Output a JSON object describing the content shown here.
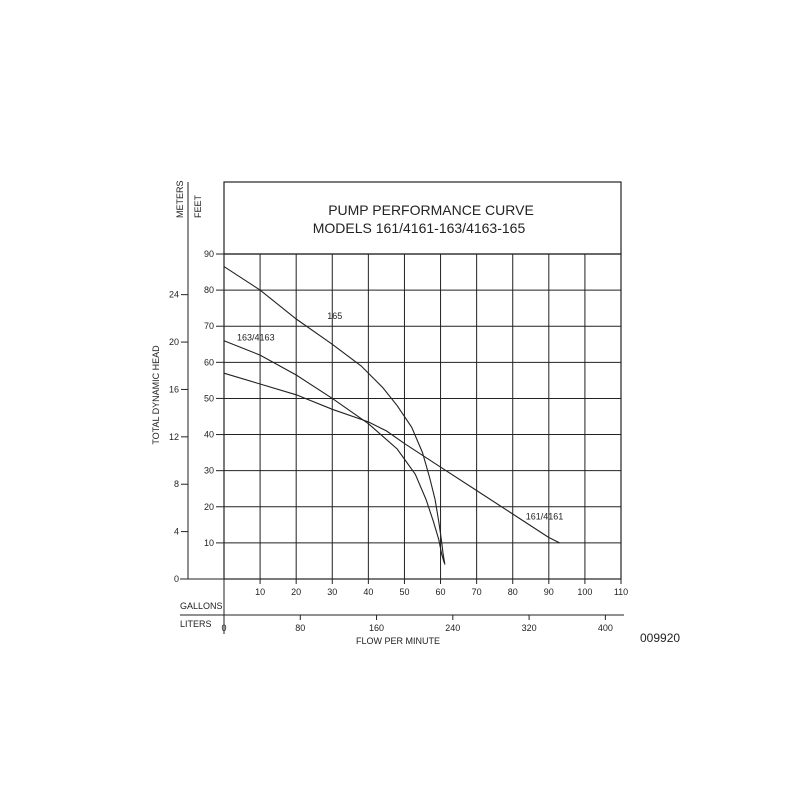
{
  "chart_data": {
    "type": "line",
    "title": "PUMP PERFORMANCE CURVE",
    "subtitle": "MODELS 161/4161-163/4163-165",
    "xlabel": "FLOW PER MINUTE",
    "ylabel": "TOTAL DYNAMIC HEAD",
    "x_unit_gallons": "GALLONS",
    "x_unit_liters": "LITERS",
    "y_unit_feet": "FEET",
    "y_unit_meters": "METERS",
    "xlim": [
      0,
      110
    ],
    "ylim": [
      0,
      90
    ],
    "grid": true,
    "x_ticks_gallons": [
      10,
      20,
      30,
      40,
      50,
      60,
      70,
      80,
      90,
      100,
      110
    ],
    "x_ticks_liters": [
      0,
      80,
      160,
      240,
      320,
      400
    ],
    "y_ticks_feet": [
      10,
      20,
      30,
      40,
      50,
      60,
      70,
      80,
      90
    ],
    "y_ticks_meters": [
      0,
      4,
      8,
      12,
      16,
      20,
      24
    ],
    "series": [
      {
        "name": "165",
        "x": [
          0,
          10,
          20,
          30,
          38,
          44,
          48,
          52,
          55,
          57,
          58.5,
          59.5,
          60.2,
          60.7,
          61.2
        ],
        "y": [
          86.5,
          80,
          72,
          65,
          59,
          53,
          48,
          42,
          35,
          28,
          22,
          16,
          11,
          7,
          4
        ]
      },
      {
        "name": "163/4163",
        "x": [
          0,
          10,
          20,
          30,
          40,
          48,
          53,
          56,
          58,
          59.5,
          60.3,
          61
        ],
        "y": [
          66,
          62,
          56.5,
          50,
          43,
          36,
          29,
          22,
          16,
          11,
          7,
          4.5
        ]
      },
      {
        "name": "161/4161",
        "x": [
          0,
          10,
          20,
          30,
          40,
          45,
          50,
          60,
          70,
          80,
          90,
          93
        ],
        "y": [
          57,
          54,
          51,
          47,
          43.5,
          41,
          37.5,
          31,
          24.5,
          18,
          11.5,
          10
        ]
      }
    ]
  },
  "figure_code": "009920"
}
